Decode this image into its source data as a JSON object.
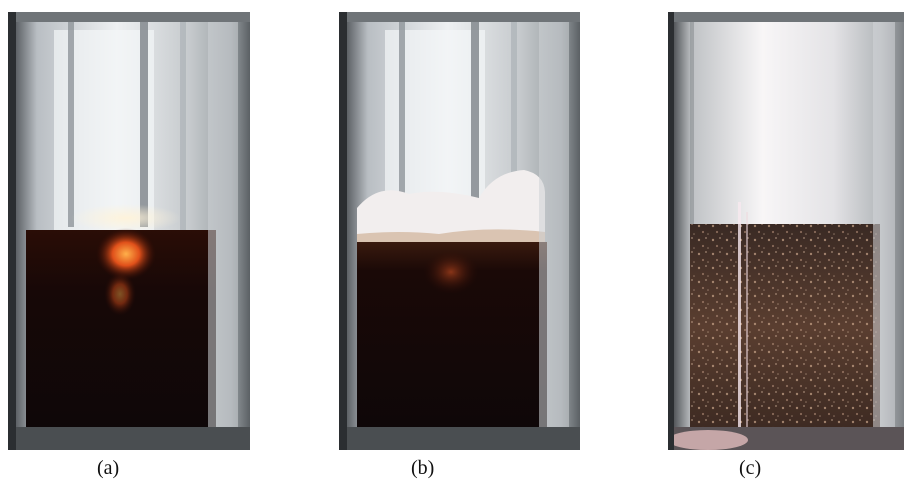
{
  "panels": [
    {
      "id": "a",
      "caption": "(a)"
    },
    {
      "id": "b",
      "caption": "(b)"
    },
    {
      "id": "c",
      "caption": "(c)"
    }
  ],
  "colors": {
    "liquid": "#120808",
    "foam": "#f2eeee",
    "glow": "#ff6a1a",
    "glass": "#d9dcdf",
    "particles": "#6b4a3a"
  }
}
